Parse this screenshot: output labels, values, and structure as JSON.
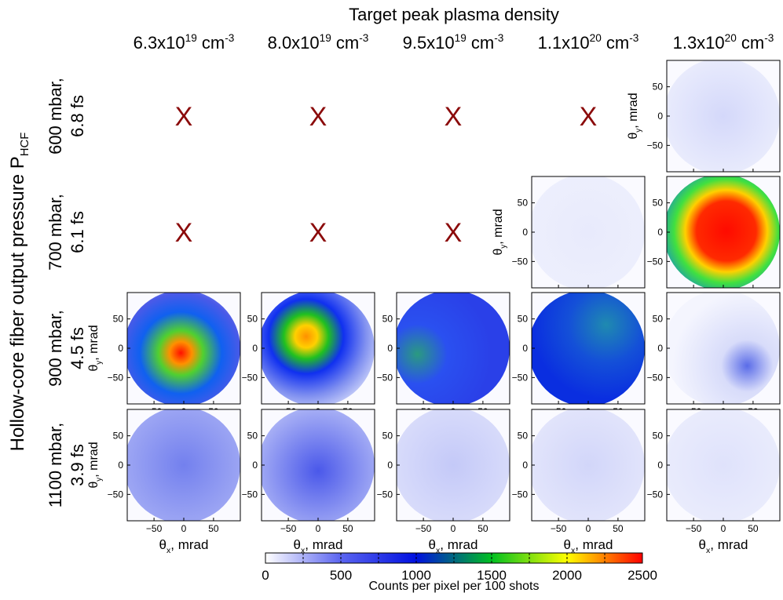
{
  "chart_data": {
    "type": "image-grid",
    "title": "Target peak plasma density",
    "columns": [
      {
        "base": "6.3x10",
        "exp": "19",
        "unit": " cm",
        "unit_exp": "-3"
      },
      {
        "base": "8.0x10",
        "exp": "19",
        "unit": " cm",
        "unit_exp": "-3"
      },
      {
        "base": "9.5x10",
        "exp": "19",
        "unit": " cm",
        "unit_exp": "-3"
      },
      {
        "base": "1.1x10",
        "exp": "20",
        "unit": " cm",
        "unit_exp": "-3"
      },
      {
        "base": "1.3x10",
        "exp": "20",
        "unit": " cm",
        "unit_exp": "-3"
      }
    ],
    "rows": [
      [
        "600 mbar,",
        "6.8 fs"
      ],
      [
        "700 mbar,",
        "6.1 fs"
      ],
      [
        "900 mbar,",
        "4.5 fs"
      ],
      [
        "1100 mbar,",
        "3.9 fs"
      ]
    ],
    "row_axis_label": {
      "text": "Hollow-core fiber output pressure P",
      "sub": "HCF"
    },
    "panels": [
      [
        "X",
        "X",
        "X",
        "X",
        null
      ],
      [
        "X",
        "X",
        "X",
        null,
        null
      ],
      [
        null,
        null,
        null,
        null,
        null
      ],
      [
        null,
        null,
        null,
        null,
        null
      ]
    ],
    "xlabel": {
      "symbol": "θ",
      "sub": "x",
      "unit": ", mrad"
    },
    "ylabel": {
      "symbol": "θ",
      "sub": "y",
      "unit": ", mrad"
    },
    "xlim": [
      -95,
      95
    ],
    "ylim": [
      -95,
      95
    ],
    "xticks": [
      {
        "value": -50,
        "label": "−50"
      },
      0,
      50
    ],
    "yticks": [
      50,
      0,
      {
        "value": -50,
        "label": "−50"
      }
    ],
    "colorbar": {
      "label": "Counts per pixel per 100 shots",
      "lim": [
        0,
        2500
      ],
      "ticks": [
        0,
        500,
        1000,
        1500,
        2000,
        2500
      ],
      "colors": [
        "#ffffff",
        "#5a64f0",
        "#0010e0",
        "#00c020",
        "#ffff00",
        "#ff0000"
      ]
    }
  }
}
